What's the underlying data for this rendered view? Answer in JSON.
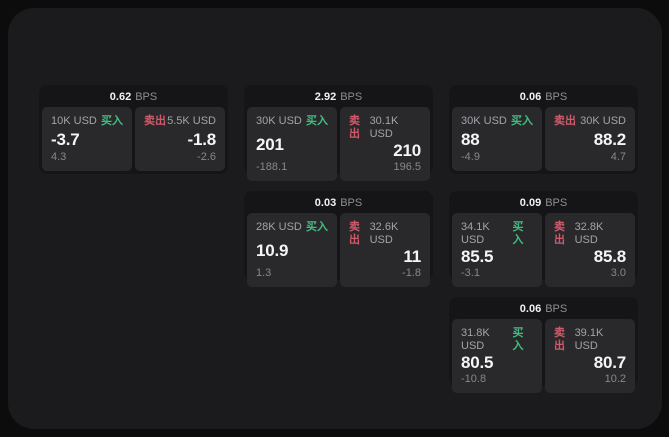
{
  "colors": {
    "page_background": "#0c0c0c",
    "window_background": "#1b1b1d",
    "card_background": "#151517",
    "panel_background": "#29292c",
    "buy_green": "#42bd80",
    "sell_red": "#d2596a"
  },
  "labels": {
    "bps_unit": "BPS",
    "buy": "买入",
    "sell": "卖出"
  },
  "cards": [
    {
      "col": 1,
      "row": 1,
      "bps": "0.62",
      "buy": {
        "amount": "10K USD",
        "main": "-3.7",
        "sub": "4.3"
      },
      "sell": {
        "amount": "5.5K USD",
        "main": "-1.8",
        "sub": "-2.6"
      }
    },
    {
      "col": 2,
      "row": 1,
      "bps": "2.92",
      "buy": {
        "amount": "30K USD",
        "main": "201",
        "sub": "-188.1"
      },
      "sell": {
        "amount": "30.1K USD",
        "main": "210",
        "sub": "196.5"
      }
    },
    {
      "col": 3,
      "row": 1,
      "bps": "0.06",
      "buy": {
        "amount": "30K USD",
        "main": "88",
        "sub": "-4.9"
      },
      "sell": {
        "amount": "30K USD",
        "main": "88.2",
        "sub": "4.7"
      }
    },
    {
      "col": 2,
      "row": 2,
      "bps": "0.03",
      "buy": {
        "amount": "28K USD",
        "main": "10.9",
        "sub": "1.3"
      },
      "sell": {
        "amount": "32.6K USD",
        "main": "11",
        "sub": "-1.8"
      }
    },
    {
      "col": 3,
      "row": 2,
      "bps": "0.09",
      "buy": {
        "amount": "34.1K USD",
        "main": "85.5",
        "sub": "-3.1"
      },
      "sell": {
        "amount": "32.8K USD",
        "main": "85.8",
        "sub": "3.0"
      }
    },
    {
      "col": 3,
      "row": 3,
      "bps": "0.06",
      "buy": {
        "amount": "31.8K USD",
        "main": "80.5",
        "sub": "-10.8"
      },
      "sell": {
        "amount": "39.1K USD",
        "main": "80.7",
        "sub": "10.2"
      }
    }
  ]
}
